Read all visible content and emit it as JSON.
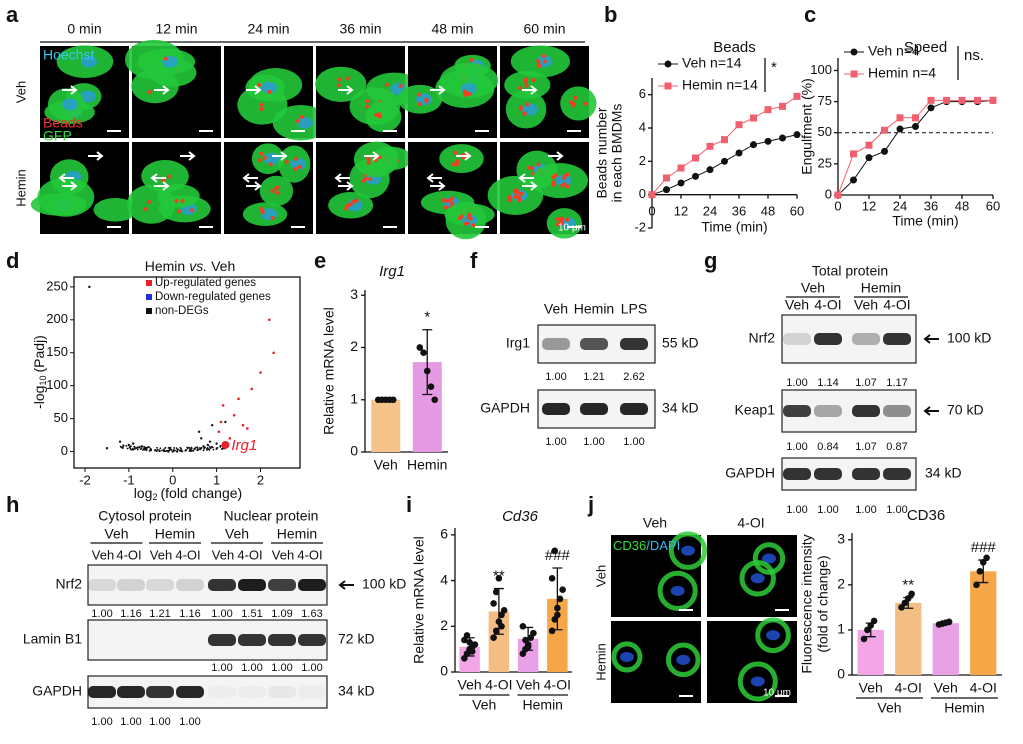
{
  "panel_a": {
    "label": "a",
    "times": [
      "0 min",
      "12 min",
      "24 min",
      "36 min",
      "48 min",
      "60 min"
    ],
    "rows": [
      "Veh",
      "Hemin"
    ],
    "stains": [
      "Hoechst",
      "Beads",
      "GFP"
    ],
    "stain_colors": [
      "#35c8f0",
      "#f03030",
      "#30e040"
    ],
    "scale": "10 μm"
  },
  "panel_b": {
    "label": "b",
    "type": "line",
    "title": "Beads",
    "ylabel": [
      "Beads number",
      "in each BMDMs"
    ],
    "xlabel": "Time (min)",
    "x": [
      0,
      6,
      12,
      18,
      24,
      30,
      36,
      42,
      48,
      54,
      60
    ],
    "series": [
      {
        "name": "Veh n=14",
        "color": "#111111",
        "marker": "circle",
        "values": [
          0,
          0.3,
          0.7,
          1.1,
          1.5,
          2.0,
          2.5,
          3.0,
          3.2,
          3.4,
          3.6
        ]
      },
      {
        "name": "Hemin n=14",
        "color": "#f0606e",
        "marker": "square",
        "values": [
          0,
          1.0,
          1.6,
          2.2,
          2.9,
          3.3,
          4.2,
          4.6,
          5.1,
          5.3,
          5.9
        ]
      }
    ],
    "significance": "*",
    "xlim": [
      0,
      60
    ],
    "xticks": [
      0,
      12,
      24,
      36,
      48,
      60
    ],
    "ylim": [
      -2,
      7
    ],
    "yticks": [
      -2,
      0,
      2,
      4,
      6
    ]
  },
  "panel_c": {
    "label": "c",
    "type": "line",
    "title": "Speed",
    "ylabel": [
      "Engulfment (%)"
    ],
    "xlabel": "Time (min)",
    "x": [
      0,
      6,
      12,
      18,
      24,
      30,
      36,
      42,
      48,
      54,
      60
    ],
    "series": [
      {
        "name": "Veh n=4",
        "color": "#111111",
        "marker": "circle",
        "values": [
          0,
          12,
          30,
          35,
          53,
          55,
          70,
          75,
          75,
          75,
          76
        ]
      },
      {
        "name": "Hemin n=4",
        "color": "#f0606e",
        "marker": "square",
        "values": [
          0,
          33,
          40,
          52,
          62,
          62,
          76,
          76,
          76,
          76,
          76
        ]
      }
    ],
    "significance": "ns.",
    "reference": 50,
    "xlim": [
      0,
      60
    ],
    "xticks": [
      0,
      12,
      24,
      36,
      48,
      60
    ],
    "ylim": [
      0,
      110
    ],
    "yticks": [
      0,
      25,
      50,
      75,
      100
    ]
  },
  "panel_d": {
    "label": "d",
    "type": "scatter",
    "title": [
      "Hemin",
      "vs.",
      "Veh"
    ],
    "ylabel": [
      "-log",
      "10",
      "(Padj)"
    ],
    "xlabel": [
      "log",
      "2",
      "(fold change)"
    ],
    "legend": [
      {
        "name": "Up-regulated genes",
        "color": "#e8202a"
      },
      {
        "name": "Down-regulated genes",
        "color": "#2030e0"
      },
      {
        "name": "non-DEGs",
        "color": "#111111"
      }
    ],
    "up": {
      "x": [
        1.05,
        1.1,
        1.15,
        1.3,
        1.4,
        1.5,
        1.6,
        1.7,
        1.8,
        2.0,
        2.2,
        2.3
      ],
      "y": [
        30,
        45,
        70,
        20,
        55,
        80,
        40,
        35,
        95,
        120,
        200,
        150
      ]
    },
    "non": {
      "x": [
        -1.9,
        -1.5,
        -1.2,
        -1.0,
        -0.8,
        -0.6,
        -0.5,
        -0.4,
        -0.3,
        -0.2,
        -0.1,
        0,
        0.1,
        0.2,
        0.3,
        0.4,
        0.5,
        0.6,
        0.7,
        0.8,
        0.9,
        1.0,
        1.2,
        -0.7,
        0.65,
        -0.9,
        0.85
      ],
      "y": [
        250,
        5,
        15,
        10,
        6,
        4,
        3,
        2,
        1,
        1,
        0,
        0,
        0,
        1,
        2,
        3,
        4,
        30,
        8,
        10,
        40,
        12,
        45,
        8,
        20,
        12,
        15
      ]
    },
    "annotation": {
      "text": "Irg1",
      "x": 1.2,
      "y": 10
    },
    "xlim": [
      -2.25,
      2.9
    ],
    "xticks": [
      -2,
      -1,
      0,
      1,
      2
    ],
    "ylim": [
      -25,
      265
    ],
    "yticks": [
      0,
      50,
      100,
      150,
      200,
      250
    ]
  },
  "panel_e": {
    "label": "e",
    "type": "bar",
    "title": "Irg1",
    "ylabel": "Relative mRNA level",
    "categories": [
      "Veh",
      "Hemin"
    ],
    "values": [
      1.0,
      1.72
    ],
    "errors": [
      0,
      0.62
    ],
    "colors": [
      "#f5c28a",
      "#e59be4"
    ],
    "points": [
      [
        1,
        1,
        1,
        1,
        1
      ],
      [
        2.0,
        1.9,
        1.55,
        1.25,
        1.0
      ]
    ],
    "significance": {
      "1": "*"
    },
    "ylim": [
      0,
      3.1
    ],
    "yticks": [
      0,
      1,
      2,
      3
    ]
  },
  "panel_f": {
    "label": "f",
    "lanes": [
      "Veh",
      "Hemin",
      "LPS"
    ],
    "blots": [
      {
        "label": "Irg1",
        "size": "55 kD",
        "quant": [
          "1.00",
          "1.21",
          "2.62"
        ]
      },
      {
        "label": "GAPDH",
        "size": "34 kD",
        "quant": [
          "1.00",
          "1.00",
          "1.00"
        ]
      }
    ]
  },
  "panel_g": {
    "label": "g",
    "title": "Total protein",
    "groups": [
      "Veh",
      "Hemin"
    ],
    "lanes": [
      "Veh",
      "4-OI",
      "Veh",
      "4-OI"
    ],
    "blots": [
      {
        "label": "Nrf2",
        "size": "100 kD",
        "quant": [
          "1.00",
          "1.14",
          "1.07",
          "1.17"
        ]
      },
      {
        "label": "Keap1",
        "size": "70 kD",
        "quant": [
          "1.00",
          "0.84",
          "1.07",
          "0.87"
        ]
      },
      {
        "label": "GAPDH",
        "size": "34 kD",
        "quant": [
          "1.00",
          "1.00",
          "1.00",
          "1.00"
        ]
      }
    ]
  },
  "panel_h": {
    "label": "h",
    "fractions": [
      "Cytosol protein",
      "Nuclear protein"
    ],
    "groups": [
      "Veh",
      "Hemin",
      "Veh",
      "Hemin"
    ],
    "lanes": [
      "Veh",
      "4-OI",
      "Veh",
      "4-OI",
      "Veh",
      "4-OI",
      "Veh",
      "4-OI"
    ],
    "blots": [
      {
        "label": "Nrf2",
        "size": "100 kD",
        "quant": [
          "1.00",
          "1.16",
          "1.21",
          "1.16",
          "1.00",
          "1.51",
          "1.09",
          "1.63"
        ]
      },
      {
        "label": "Lamin B1",
        "size": "72 kD",
        "quant": [
          "1.00",
          "1.00",
          "1.00",
          "1.00"
        ]
      },
      {
        "label": "GAPDH",
        "size": "34 kD",
        "quant": [
          "1.00",
          "1.00",
          "1.00",
          "1.00"
        ]
      }
    ]
  },
  "panel_i": {
    "label": "i",
    "type": "bar",
    "title": "Cd36",
    "ylabel": "Relative mRNA level",
    "bars": [
      "Veh",
      "4-OI",
      "Veh",
      "4-OI"
    ],
    "groups": [
      "Veh",
      "Hemin"
    ],
    "values": [
      1.1,
      2.65,
      1.45,
      3.2
    ],
    "errors": [
      0.4,
      1.0,
      0.5,
      1.35
    ],
    "colors": [
      "#f2a6e6",
      "#f2be84",
      "#e8a0e6",
      "#f5a747"
    ],
    "points": [
      [
        0.6,
        0.8,
        1.0,
        1.1,
        1.2,
        1.4,
        1.6,
        1.3,
        0.9
      ],
      [
        1.5,
        1.8,
        2.2,
        2.5,
        2.7,
        3.0,
        3.5,
        4.1,
        2.0
      ],
      [
        0.8,
        1.0,
        1.2,
        1.5,
        1.7,
        2.0,
        1.4,
        1.1
      ],
      [
        1.8,
        2.3,
        2.8,
        3.2,
        3.6,
        4.1,
        5.3,
        2.5
      ]
    ],
    "significance": {
      "1": "**",
      "3": "###"
    },
    "ylim": [
      0,
      6.3
    ],
    "yticks": [
      0,
      2,
      4,
      6
    ]
  },
  "panel_j": {
    "label": "j",
    "columns": [
      "Veh",
      "4-OI"
    ],
    "rows": [
      "Veh",
      "Hemin"
    ],
    "stains": [
      "CD36",
      "/DAPI"
    ],
    "stain_colors": [
      "#30e040",
      "#35b8f0"
    ],
    "scale": "10 μm",
    "chart": {
      "type": "bar",
      "title": "CD36",
      "ylabel": [
        "Fluorescence intensity",
        "(fold of change)"
      ],
      "bars": [
        "Veh",
        "4-OI",
        "Veh",
        "4-OI"
      ],
      "groups": [
        "Veh",
        "Hemin"
      ],
      "values": [
        1.0,
        1.6,
        1.15,
        2.3
      ],
      "errors": [
        0.15,
        0.12,
        0.03,
        0.25
      ],
      "colors": [
        "#f2a6e6",
        "#f2be84",
        "#e8a0e6",
        "#f5a747"
      ],
      "points": [
        [
          0.8,
          1.0,
          1.1,
          1.2
        ],
        [
          1.5,
          1.6,
          1.7,
          1.8
        ],
        [
          1.12,
          1.14,
          1.16,
          1.18
        ],
        [
          2.0,
          2.3,
          2.5,
          2.6
        ]
      ],
      "significance": {
        "1": "**",
        "3": "###"
      },
      "ylim": [
        0,
        3.15
      ],
      "yticks": [
        0,
        1,
        2,
        3
      ]
    }
  }
}
